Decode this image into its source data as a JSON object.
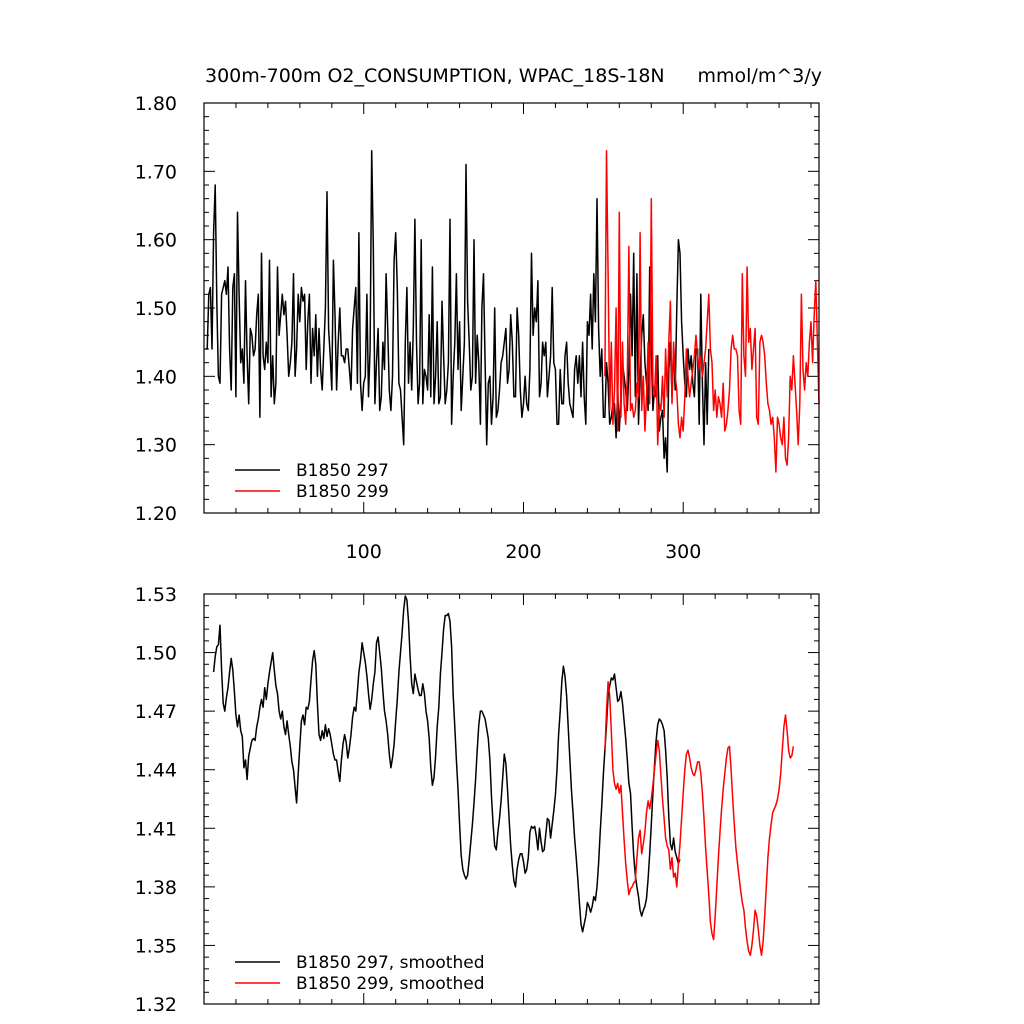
{
  "header": {
    "title": "300m-700m O2_CONSUMPTION, WPAC_18S-18N",
    "units": "mmol/m^3/y"
  },
  "colors": {
    "series_297": "#000000",
    "series_299": "#ff0000"
  },
  "chart_data": [
    {
      "type": "line",
      "title": "300m-700m O2_CONSUMPTION, WPAC_18S-18N",
      "units": "mmol/m^3/y",
      "xlim": [
        0,
        385
      ],
      "ylim": [
        1.2,
        1.8
      ],
      "xticks": [
        100,
        200,
        300
      ],
      "yticks": [
        1.2,
        1.3,
        1.4,
        1.5,
        1.6,
        1.7,
        1.8
      ],
      "ytick_labels": [
        "1.20",
        "1.30",
        "1.40",
        "1.50",
        "1.60",
        "1.70",
        "1.80"
      ],
      "legend": "bottom-left",
      "series": [
        {
          "name": "B1850 297",
          "color": "#000000",
          "x_start": 1,
          "values": [
            1.44,
            1.44,
            1.52,
            1.53,
            1.44,
            1.61,
            1.68,
            1.51,
            1.4,
            1.39,
            1.52,
            1.53,
            1.54,
            1.52,
            1.56,
            1.44,
            1.38,
            1.53,
            1.55,
            1.37,
            1.64,
            1.52,
            1.42,
            1.44,
            1.39,
            1.54,
            1.43,
            1.36,
            1.47,
            1.46,
            1.43,
            1.44,
            1.49,
            1.52,
            1.34,
            1.58,
            1.43,
            1.41,
            1.45,
            1.42,
            1.57,
            1.37,
            1.43,
            1.36,
            1.39,
            1.56,
            1.46,
            1.49,
            1.52,
            1.49,
            1.51,
            1.46,
            1.4,
            1.42,
            1.45,
            1.55,
            1.4,
            1.44,
            1.52,
            1.48,
            1.53,
            1.51,
            1.52,
            1.41,
            1.48,
            1.52,
            1.39,
            1.47,
            1.43,
            1.49,
            1.4,
            1.47,
            1.41,
            1.38,
            1.44,
            1.5,
            1.67,
            1.47,
            1.43,
            1.38,
            1.57,
            1.49,
            1.38,
            1.45,
            1.5,
            1.43,
            1.43,
            1.42,
            1.44,
            1.44,
            1.41,
            1.38,
            1.47,
            1.5,
            1.53,
            1.39,
            1.61,
            1.39,
            1.35,
            1.39,
            1.4,
            1.52,
            1.37,
            1.44,
            1.73,
            1.59,
            1.36,
            1.42,
            1.47,
            1.35,
            1.37,
            1.45,
            1.41,
            1.55,
            1.47,
            1.38,
            1.35,
            1.4,
            1.57,
            1.61,
            1.53,
            1.39,
            1.38,
            1.34,
            1.3,
            1.45,
            1.53,
            1.39,
            1.45,
            1.38,
            1.47,
            1.63,
            1.45,
            1.36,
            1.39,
            1.6,
            1.36,
            1.41,
            1.4,
            1.38,
            1.49,
            1.37,
            1.56,
            1.36,
            1.4,
            1.48,
            1.36,
            1.37,
            1.51,
            1.43,
            1.36,
            1.38,
            1.42,
            1.63,
            1.33,
            1.4,
            1.45,
            1.55,
            1.41,
            1.48,
            1.35,
            1.4,
            1.45,
            1.71,
            1.51,
            1.45,
            1.38,
            1.4,
            1.6,
            1.39,
            1.46,
            1.42,
            1.33,
            1.5,
            1.55,
            1.42,
            1.3,
            1.39,
            1.4,
            1.33,
            1.37,
            1.5,
            1.34,
            1.35,
            1.38,
            1.42,
            1.43,
            1.45,
            1.47,
            1.39,
            1.41,
            1.49,
            1.45,
            1.37,
            1.37,
            1.5,
            1.46,
            1.38,
            1.34,
            1.36,
            1.4,
            1.36,
            1.35,
            1.41,
            1.58,
            1.46,
            1.5,
            1.48,
            1.54,
            1.37,
            1.39,
            1.45,
            1.43,
            1.45,
            1.37,
            1.4,
            1.43,
            1.53,
            1.42,
            1.41,
            1.33,
            1.33,
            1.41,
            1.36,
            1.36,
            1.43,
            1.45,
            1.39,
            1.36,
            1.35,
            1.34,
            1.41,
            1.43,
            1.39,
            1.43,
            1.37,
            1.45,
            1.37,
            1.33,
            1.48,
            1.46,
            1.52,
            1.44,
            1.55,
            1.48,
            1.66,
            1.47,
            1.4,
            1.44,
            1.34,
            1.34,
            1.42,
            1.39,
            1.33,
            1.34,
            1.36,
            1.36,
            1.31,
            1.38,
            1.32,
            1.37,
            1.42,
            1.4,
            1.38,
            1.35,
            1.41,
            1.52,
            1.43,
            1.58,
            1.37,
            1.55,
            1.33,
            1.4,
            1.46,
            1.49,
            1.42,
            1.39,
            1.35,
            1.56,
            1.44,
            1.35,
            1.38,
            1.37,
            1.43,
            1.32,
            1.34,
            1.35,
            1.28,
            1.31,
            1.26,
            1.41,
            1.45,
            1.37,
            1.44,
            1.38,
            1.5,
            1.6,
            1.58,
            1.48,
            1.43,
            1.39,
            1.37,
            1.44,
            1.41,
            1.43,
            1.39,
            1.37,
            1.44,
            1.44,
            1.33,
            1.52,
            1.39,
            1.3,
            1.42,
            1.33,
            1.44
          ]
        },
        {
          "name": "B1850 299",
          "color": "#ff0000",
          "x_start": 251,
          "values": [
            1.4,
            1.73,
            1.55,
            1.35,
            1.45,
            1.33,
            1.38,
            1.5,
            1.32,
            1.64,
            1.34,
            1.45,
            1.36,
            1.33,
            1.4,
            1.59,
            1.35,
            1.36,
            1.34,
            1.35,
            1.39,
            1.37,
            1.61,
            1.35,
            1.4,
            1.32,
            1.37,
            1.45,
            1.36,
            1.66,
            1.39,
            1.37,
            1.43,
            1.3,
            1.36,
            1.35,
            1.4,
            1.34,
            1.44,
            1.37,
            1.45,
            1.51,
            1.36,
            1.45,
            1.4,
            1.38,
            1.33,
            1.31,
            1.34,
            1.32,
            1.37,
            1.44,
            1.4,
            1.37,
            1.39,
            1.41,
            1.43,
            1.46,
            1.43,
            1.41,
            1.43,
            1.4,
            1.42,
            1.44,
            1.48,
            1.52,
            1.44,
            1.42,
            1.35,
            1.38,
            1.34,
            1.37,
            1.36,
            1.34,
            1.39,
            1.32,
            1.33,
            1.35,
            1.38,
            1.44,
            1.46,
            1.44,
            1.44,
            1.43,
            1.35,
            1.33,
            1.55,
            1.43,
            1.4,
            1.56,
            1.45,
            1.47,
            1.41,
            1.44,
            1.47,
            1.34,
            1.33,
            1.45,
            1.46,
            1.45,
            1.43,
            1.39,
            1.36,
            1.35,
            1.33,
            1.34,
            1.31,
            1.26,
            1.34,
            1.33,
            1.31,
            1.3,
            1.34,
            1.28,
            1.27,
            1.31,
            1.4,
            1.38,
            1.43,
            1.39,
            1.35,
            1.3,
            1.36,
            1.52,
            1.41,
            1.38,
            1.42,
            1.4,
            1.45,
            1.48,
            1.42,
            1.49,
            1.54,
            1.45,
            1.36
          ]
        }
      ]
    },
    {
      "type": "line",
      "title": "",
      "xlim": [
        0,
        385
      ],
      "ylim": [
        1.32,
        1.53
      ],
      "xticks": [
        100,
        200,
        300
      ],
      "yticks": [
        1.32,
        1.35,
        1.38,
        1.41,
        1.44,
        1.47,
        1.5,
        1.53
      ],
      "ytick_labels": [
        "1.32",
        "1.35",
        "1.38",
        "1.41",
        "1.44",
        "1.47",
        "1.50",
        "1.53"
      ],
      "legend": "bottom-left",
      "series": [
        {
          "name": "B1850 297, smoothed",
          "color": "#000000",
          "x_start": 6,
          "values": [
            1.49,
            1.498,
            1.503,
            1.504,
            1.514,
            1.491,
            1.474,
            1.47,
            1.477,
            1.482,
            1.49,
            1.497,
            1.491,
            1.48,
            1.468,
            1.462,
            1.468,
            1.46,
            1.457,
            1.441,
            1.445,
            1.435,
            1.447,
            1.451,
            1.455,
            1.456,
            1.455,
            1.462,
            1.466,
            1.472,
            1.476,
            1.472,
            1.482,
            1.476,
            1.484,
            1.49,
            1.495,
            1.5,
            1.491,
            1.483,
            1.479,
            1.47,
            1.466,
            1.47,
            1.462,
            1.458,
            1.465,
            1.458,
            1.452,
            1.444,
            1.44,
            1.431,
            1.423,
            1.438,
            1.452,
            1.465,
            1.468,
            1.463,
            1.472,
            1.471,
            1.475,
            1.486,
            1.496,
            1.501,
            1.494,
            1.474,
            1.458,
            1.455,
            1.46,
            1.456,
            1.463,
            1.457,
            1.461,
            1.458,
            1.453,
            1.448,
            1.445,
            1.445,
            1.439,
            1.434,
            1.445,
            1.453,
            1.458,
            1.454,
            1.446,
            1.451,
            1.458,
            1.467,
            1.472,
            1.47,
            1.48,
            1.49,
            1.496,
            1.505,
            1.5,
            1.495,
            1.488,
            1.479,
            1.471,
            1.476,
            1.484,
            1.49,
            1.505,
            1.508,
            1.5,
            1.492,
            1.48,
            1.47,
            1.465,
            1.458,
            1.448,
            1.441,
            1.446,
            1.453,
            1.465,
            1.476,
            1.49,
            1.5,
            1.51,
            1.522,
            1.529,
            1.527,
            1.516,
            1.498,
            1.484,
            1.479,
            1.489,
            1.485,
            1.481,
            1.478,
            1.478,
            1.484,
            1.479,
            1.47,
            1.465,
            1.456,
            1.441,
            1.432,
            1.436,
            1.447,
            1.462,
            1.472,
            1.489,
            1.5,
            1.512,
            1.519,
            1.519,
            1.52,
            1.516,
            1.503,
            1.478,
            1.462,
            1.445,
            1.43,
            1.412,
            1.396,
            1.389,
            1.386,
            1.384,
            1.386,
            1.394,
            1.403,
            1.412,
            1.423,
            1.435,
            1.45,
            1.463,
            1.47,
            1.47,
            1.468,
            1.466,
            1.461,
            1.456,
            1.445,
            1.426,
            1.412,
            1.401,
            1.399,
            1.408,
            1.415,
            1.424,
            1.436,
            1.448,
            1.443,
            1.43,
            1.415,
            1.401,
            1.391,
            1.383,
            1.38,
            1.389,
            1.394,
            1.397,
            1.397,
            1.393,
            1.387,
            1.389,
            1.395,
            1.408,
            1.411,
            1.41,
            1.411,
            1.406,
            1.399,
            1.41,
            1.403,
            1.398,
            1.399,
            1.407,
            1.415,
            1.414,
            1.405,
            1.412,
            1.419,
            1.427,
            1.44,
            1.458,
            1.47,
            1.485,
            1.493,
            1.488,
            1.478,
            1.462,
            1.446,
            1.43,
            1.418,
            1.405,
            1.395,
            1.384,
            1.372,
            1.361,
            1.357,
            1.361,
            1.365,
            1.372,
            1.37,
            1.367,
            1.37,
            1.375,
            1.373,
            1.38,
            1.392,
            1.408,
            1.422,
            1.438,
            1.45,
            1.463,
            1.478,
            1.483,
            1.487,
            1.486,
            1.489,
            1.482,
            1.475,
            1.476,
            1.48,
            1.474,
            1.465,
            1.456,
            1.445,
            1.433,
            1.428,
            1.411,
            1.396,
            1.386,
            1.38,
            1.375,
            1.368,
            1.365,
            1.368,
            1.37,
            1.374,
            1.384,
            1.397,
            1.412,
            1.428,
            1.442,
            1.455,
            1.463,
            1.466,
            1.465,
            1.463,
            1.46,
            1.45,
            1.436,
            1.416,
            1.402,
            1.399,
            1.405,
            1.398,
            1.395,
            1.392,
            1.394
          ]
        },
        {
          "name": "B1850 299, smoothed",
          "color": "#ff0000",
          "x_start": 251,
          "values": [
            1.45,
            1.47,
            1.485,
            1.478,
            1.46,
            1.44,
            1.433,
            1.43,
            1.433,
            1.428,
            1.432,
            1.418,
            1.404,
            1.392,
            1.383,
            1.376,
            1.379,
            1.38,
            1.382,
            1.383,
            1.395,
            1.405,
            1.409,
            1.397,
            1.402,
            1.408,
            1.418,
            1.424,
            1.42,
            1.425,
            1.432,
            1.44,
            1.448,
            1.455,
            1.45,
            1.437,
            1.425,
            1.415,
            1.405,
            1.401,
            1.399,
            1.389,
            1.395,
            1.385,
            1.387,
            1.38,
            1.392,
            1.402,
            1.415,
            1.428,
            1.44,
            1.448,
            1.45,
            1.446,
            1.441,
            1.438,
            1.437,
            1.44,
            1.444,
            1.444,
            1.438,
            1.428,
            1.415,
            1.4,
            1.388,
            1.376,
            1.362,
            1.356,
            1.353,
            1.365,
            1.38,
            1.395,
            1.408,
            1.42,
            1.43,
            1.438,
            1.446,
            1.451,
            1.452,
            1.44,
            1.425,
            1.412,
            1.4,
            1.392,
            1.385,
            1.378,
            1.372,
            1.368,
            1.359,
            1.352,
            1.347,
            1.345,
            1.35,
            1.358,
            1.368,
            1.365,
            1.358,
            1.35,
            1.345,
            1.352,
            1.365,
            1.38,
            1.395,
            1.405,
            1.412,
            1.418,
            1.42,
            1.422,
            1.425,
            1.43,
            1.438,
            1.45,
            1.462,
            1.468,
            1.46,
            1.45,
            1.446,
            1.447,
            1.452
          ]
        }
      ]
    }
  ]
}
